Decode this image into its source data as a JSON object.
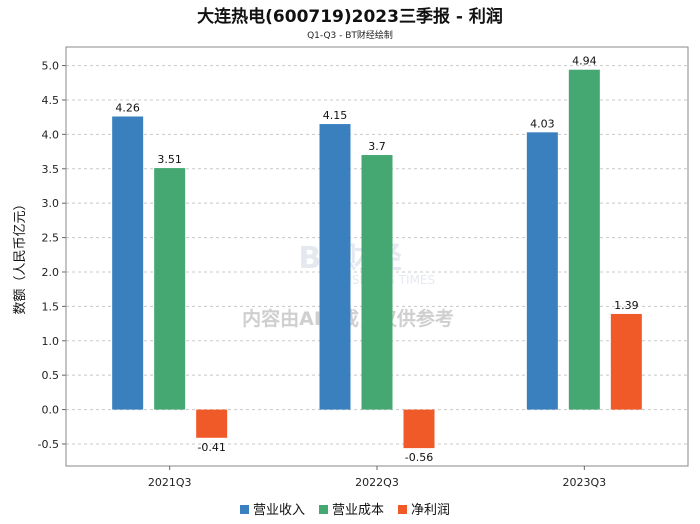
{
  "chart_data": {
    "type": "bar",
    "title": "大连热电(600719)2023三季报 - 利润",
    "subtitle": "Q1-Q3 - BT财经绘制",
    "xlabel": "",
    "ylabel": "数额（人民币亿元）",
    "categories": [
      "2021Q3",
      "2022Q3",
      "2023Q3"
    ],
    "series": [
      {
        "name": "营业收入",
        "color": "#3A80BF",
        "values": [
          4.26,
          4.15,
          4.03
        ]
      },
      {
        "name": "营业成本",
        "color": "#45A872",
        "values": [
          3.51,
          3.7,
          4.94
        ]
      },
      {
        "name": "净利润",
        "color": "#F05A28",
        "values": [
          -0.41,
          -0.56,
          1.39
        ]
      }
    ],
    "ylim": [
      -0.82,
      5.27
    ],
    "yticks": [
      -0.5,
      0.0,
      0.5,
      1.0,
      1.5,
      2.0,
      2.5,
      3.0,
      3.5,
      4.0,
      4.5,
      5.0
    ],
    "grid": true,
    "legend_position": "bottom-center"
  },
  "watermark": {
    "logo_text": "BT财经",
    "logo_sub": "BUSINESS TIMES",
    "notice": "内容由AI生成，仅供参考"
  }
}
